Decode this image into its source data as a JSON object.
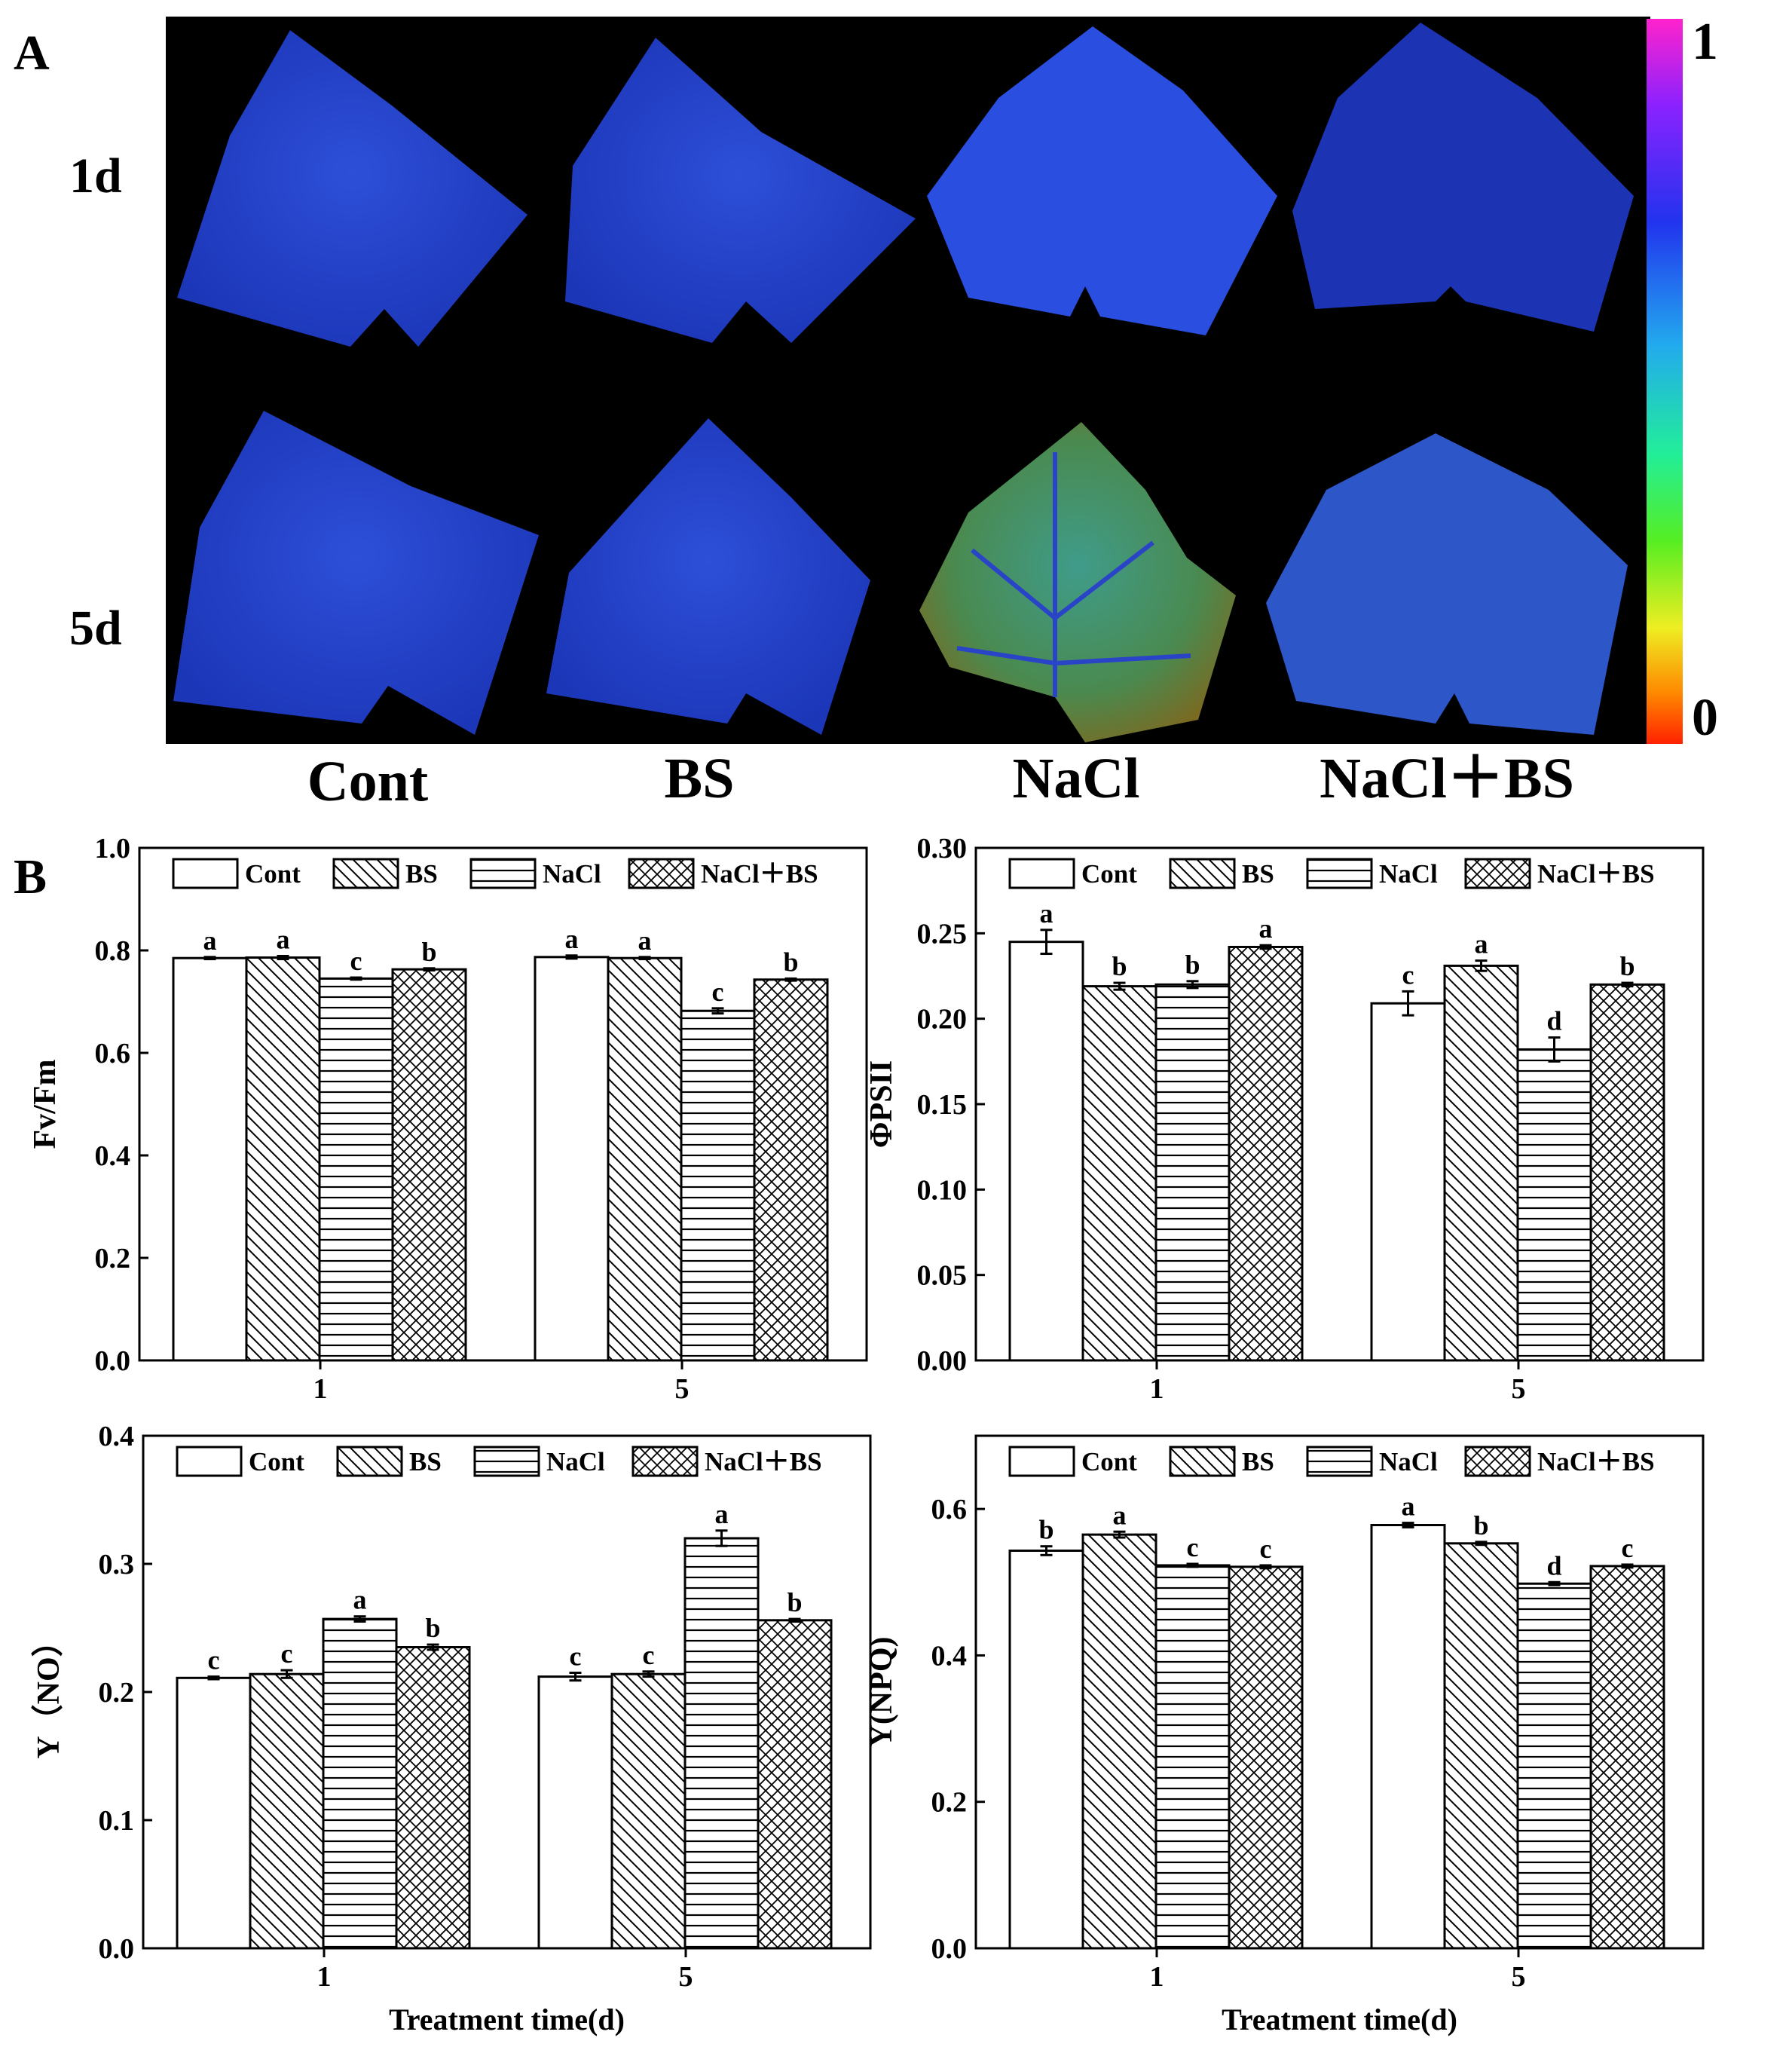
{
  "panelA": {
    "label": "A",
    "row_labels": [
      "1d",
      "5d"
    ],
    "col_labels": [
      "Cont",
      "BS",
      "NaCl",
      "NaCl＋BS"
    ],
    "scale": {
      "max_label": "1",
      "min_label": "0"
    },
    "image_content": "Chlorophyll fluorescence images of leaves (Fv/Fm false-colour)"
  },
  "panelB": {
    "label": "B"
  },
  "colors": {
    "bar_edge": "#000000",
    "background": "#ffffff",
    "panelA_bg": "#000000"
  },
  "chart_data": [
    {
      "type": "bar",
      "ylabel": "Fv/Fm",
      "xlabel": "",
      "categories": [
        "1",
        "5"
      ],
      "ylim": [
        0,
        1.0
      ],
      "yticks": [
        "0.0",
        "0.2",
        "0.4",
        "0.6",
        "0.8",
        "1.0"
      ],
      "legend": [
        "Cont",
        "BS",
        "NaCl",
        "NaCl＋BS"
      ],
      "series": [
        {
          "name": "Cont",
          "values": [
            0.785,
            0.787
          ],
          "errors": [
            0.002,
            0.003
          ],
          "letters": [
            "a",
            "a"
          ]
        },
        {
          "name": "BS",
          "values": [
            0.786,
            0.785
          ],
          "errors": [
            0.003,
            0.002
          ],
          "letters": [
            "a",
            "a"
          ]
        },
        {
          "name": "NaCl",
          "values": [
            0.745,
            0.682
          ],
          "errors": [
            0.002,
            0.005
          ],
          "letters": [
            "c",
            "c"
          ]
        },
        {
          "name": "NaCl＋BS",
          "values": [
            0.763,
            0.743
          ],
          "errors": [
            0.002,
            0.002
          ],
          "letters": [
            "b",
            "b"
          ]
        }
      ]
    },
    {
      "type": "bar",
      "ylabel": "ΦPSII",
      "xlabel": "",
      "categories": [
        "1",
        "5"
      ],
      "ylim": [
        0,
        0.3
      ],
      "yticks": [
        "0.00",
        "0.05",
        "0.10",
        "0.15",
        "0.20",
        "0.25",
        "0.30"
      ],
      "legend": [
        "Cont",
        "BS",
        "NaCl",
        "NaCl＋BS"
      ],
      "series": [
        {
          "name": "Cont",
          "values": [
            0.245,
            0.209
          ],
          "errors": [
            0.007,
            0.007
          ],
          "letters": [
            "a",
            "c"
          ]
        },
        {
          "name": "BS",
          "values": [
            0.219,
            0.231
          ],
          "errors": [
            0.002,
            0.003
          ],
          "letters": [
            "b",
            "a"
          ]
        },
        {
          "name": "NaCl",
          "values": [
            0.22,
            0.182
          ],
          "errors": [
            0.002,
            0.007
          ],
          "letters": [
            "b",
            "d"
          ]
        },
        {
          "name": "NaCl＋BS",
          "values": [
            0.242,
            0.22
          ],
          "errors": [
            0.001,
            0.001
          ],
          "letters": [
            "a",
            "b"
          ]
        }
      ]
    },
    {
      "type": "bar",
      "ylabel": "Y（NO）",
      "xlabel": "Treatment time(d)",
      "categories": [
        "1",
        "5"
      ],
      "ylim": [
        0,
        0.4
      ],
      "yticks": [
        "0.0",
        "0.1",
        "0.2",
        "0.3",
        "0.4"
      ],
      "legend": [
        "Cont",
        "BS",
        "NaCl",
        "NaCl＋BS"
      ],
      "series": [
        {
          "name": "Cont",
          "values": [
            0.211,
            0.212
          ],
          "errors": [
            0.001,
            0.003
          ],
          "letters": [
            "c",
            "c"
          ]
        },
        {
          "name": "BS",
          "values": [
            0.214,
            0.214
          ],
          "errors": [
            0.003,
            0.002
          ],
          "letters": [
            "c",
            "c"
          ]
        },
        {
          "name": "NaCl",
          "values": [
            0.257,
            0.32
          ],
          "errors": [
            0.002,
            0.006
          ],
          "letters": [
            "a",
            "a"
          ]
        },
        {
          "name": "NaCl＋BS",
          "values": [
            0.235,
            0.256
          ],
          "errors": [
            0.002,
            0.001
          ],
          "letters": [
            "b",
            "b"
          ]
        }
      ]
    },
    {
      "type": "bar",
      "ylabel": "Y(NPQ)",
      "xlabel": "Treatment time(d)",
      "categories": [
        "1",
        "5"
      ],
      "ylim": [
        0,
        0.7
      ],
      "yticks": [
        "0.0",
        "0.2",
        "0.4",
        "0.6"
      ],
      "legend": [
        "Cont",
        "BS",
        "NaCl",
        "NaCl＋BS"
      ],
      "series": [
        {
          "name": "Cont",
          "values": [
            0.543,
            0.578
          ],
          "errors": [
            0.006,
            0.003
          ],
          "letters": [
            "b",
            "a"
          ]
        },
        {
          "name": "BS",
          "values": [
            0.565,
            0.553
          ],
          "errors": [
            0.004,
            0.002
          ],
          "letters": [
            "a",
            "b"
          ]
        },
        {
          "name": "NaCl",
          "values": [
            0.523,
            0.498
          ],
          "errors": [
            0.002,
            0.002
          ],
          "letters": [
            "c",
            "d"
          ]
        },
        {
          "name": "NaCl＋BS",
          "values": [
            0.521,
            0.522
          ],
          "errors": [
            0.002,
            0.002
          ],
          "letters": [
            "c",
            "c"
          ]
        }
      ]
    }
  ]
}
